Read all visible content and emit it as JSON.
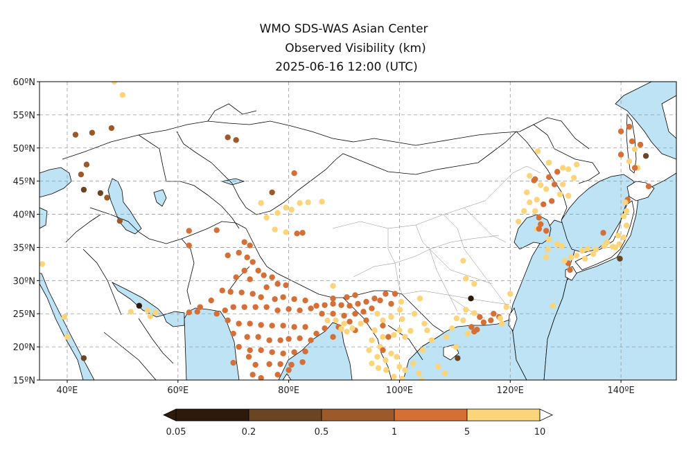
{
  "title": {
    "line1": "WMO SDS-WAS Asian Center",
    "line2": "Observed Visibility (km)",
    "line3": "2025-06-16 12:00 (UTC)"
  },
  "map": {
    "lon_range": [
      35,
      150
    ],
    "lat_range": [
      15,
      60
    ],
    "lon_ticks": [
      {
        "v": 40,
        "label": "40ºE"
      },
      {
        "v": 60,
        "label": "60ºE"
      },
      {
        "v": 80,
        "label": "80ºE"
      },
      {
        "v": 100,
        "label": "100ºE"
      },
      {
        "v": 120,
        "label": "120ºE"
      },
      {
        "v": 140,
        "label": "140ºE"
      }
    ],
    "lat_ticks": [
      {
        "v": 15,
        "label": "15ºN"
      },
      {
        "v": 20,
        "label": "20ºN"
      },
      {
        "v": 25,
        "label": "25ºN"
      },
      {
        "v": 30,
        "label": "30ºN"
      },
      {
        "v": 35,
        "label": "35ºN"
      },
      {
        "v": 40,
        "label": "40ºN"
      },
      {
        "v": 45,
        "label": "45ºN"
      },
      {
        "v": 50,
        "label": "50ºN"
      },
      {
        "v": 55,
        "label": "55ºN"
      },
      {
        "v": 60,
        "label": "60ºN"
      }
    ],
    "grid": true,
    "ocean_color": "#bde3f5",
    "land_color": "#ffffff"
  },
  "colorbar": {
    "boundaries": [
      "0.05",
      "0.2",
      "0.5",
      "1",
      "5",
      "10"
    ],
    "colors": [
      "#2d1a0c",
      "#6b4423",
      "#9c5a2a",
      "#d66f35",
      "#fcd57a"
    ]
  },
  "stations_cat": [
    {
      "lon": 41.5,
      "lat": 52,
      "c": 2
    },
    {
      "lon": 44.5,
      "lat": 52.3,
      "c": 2
    },
    {
      "lon": 48,
      "lat": 53,
      "c": 2
    },
    {
      "lon": 43.5,
      "lat": 47.5,
      "c": 2
    },
    {
      "lon": 42.5,
      "lat": 46,
      "c": 2
    },
    {
      "lon": 43,
      "lat": 43.7,
      "c": 1
    },
    {
      "lon": 46,
      "lat": 43.2,
      "c": 1
    },
    {
      "lon": 47.2,
      "lat": 42.5,
      "c": 2
    },
    {
      "lon": 49.5,
      "lat": 39,
      "c": 2
    },
    {
      "lon": 48.5,
      "lat": 60,
      "c": 4
    },
    {
      "lon": 50,
      "lat": 58,
      "c": 4
    },
    {
      "lon": 35.5,
      "lat": 32.5,
      "c": 4
    },
    {
      "lon": 39.5,
      "lat": 24.5,
      "c": 4
    },
    {
      "lon": 40,
      "lat": 21.5,
      "c": 4
    },
    {
      "lon": 43,
      "lat": 18.3,
      "c": 1
    },
    {
      "lon": 53,
      "lat": 26.2,
      "c": 0
    },
    {
      "lon": 54.5,
      "lat": 25.5,
      "c": 4
    },
    {
      "lon": 55,
      "lat": 24.6,
      "c": 4
    },
    {
      "lon": 56,
      "lat": 25.2,
      "c": 4
    },
    {
      "lon": 51.5,
      "lat": 25.3,
      "c": 4
    },
    {
      "lon": 69,
      "lat": 51.6,
      "c": 2
    },
    {
      "lon": 70.5,
      "lat": 51.2,
      "c": 2
    },
    {
      "lon": 77,
      "lat": 43.3,
      "c": 2
    },
    {
      "lon": 81,
      "lat": 46.2,
      "c": 3
    },
    {
      "lon": 75,
      "lat": 41.7,
      "c": 4
    },
    {
      "lon": 76,
      "lat": 39.5,
      "c": 4
    },
    {
      "lon": 78,
      "lat": 40.2,
      "c": 4
    },
    {
      "lon": 79.5,
      "lat": 41,
      "c": 4
    },
    {
      "lon": 80.5,
      "lat": 40.7,
      "c": 4
    },
    {
      "lon": 82,
      "lat": 41.7,
      "c": 4
    },
    {
      "lon": 83.5,
      "lat": 41.8,
      "c": 4
    },
    {
      "lon": 86,
      "lat": 41.9,
      "c": 4
    },
    {
      "lon": 77.5,
      "lat": 37.7,
      "c": 4
    },
    {
      "lon": 79.5,
      "lat": 37.3,
      "c": 4
    },
    {
      "lon": 81.5,
      "lat": 37.1,
      "c": 3
    },
    {
      "lon": 82.5,
      "lat": 37.2,
      "c": 3
    },
    {
      "lon": 62,
      "lat": 37.5,
      "c": 3
    },
    {
      "lon": 67,
      "lat": 37.6,
      "c": 3
    },
    {
      "lon": 62,
      "lat": 35.3,
      "c": 3
    },
    {
      "lon": 72,
      "lat": 35.8,
      "c": 3
    },
    {
      "lon": 73,
      "lat": 35.3,
      "c": 3
    },
    {
      "lon": 69,
      "lat": 33.8,
      "c": 3
    },
    {
      "lon": 71,
      "lat": 34.2,
      "c": 3
    },
    {
      "lon": 72.5,
      "lat": 33.5,
      "c": 3
    },
    {
      "lon": 73.5,
      "lat": 32.8,
      "c": 3
    },
    {
      "lon": 74.5,
      "lat": 31.5,
      "c": 3
    },
    {
      "lon": 72,
      "lat": 31.5,
      "c": 3
    },
    {
      "lon": 70.5,
      "lat": 30.5,
      "c": 3
    },
    {
      "lon": 73,
      "lat": 30.2,
      "c": 3
    },
    {
      "lon": 75.5,
      "lat": 30.8,
      "c": 3
    },
    {
      "lon": 77,
      "lat": 30.5,
      "c": 3
    },
    {
      "lon": 76,
      "lat": 29,
      "c": 3
    },
    {
      "lon": 78,
      "lat": 29.5,
      "c": 3
    },
    {
      "lon": 79.5,
      "lat": 29.3,
      "c": 3
    },
    {
      "lon": 68,
      "lat": 28.5,
      "c": 3
    },
    {
      "lon": 69.5,
      "lat": 28.3,
      "c": 3
    },
    {
      "lon": 71.5,
      "lat": 28.2,
      "c": 3
    },
    {
      "lon": 73.5,
      "lat": 28,
      "c": 3
    },
    {
      "lon": 75,
      "lat": 27.5,
      "c": 3
    },
    {
      "lon": 77.5,
      "lat": 27.2,
      "c": 3
    },
    {
      "lon": 79,
      "lat": 27.5,
      "c": 3
    },
    {
      "lon": 81,
      "lat": 27.2,
      "c": 3
    },
    {
      "lon": 83,
      "lat": 27,
      "c": 3
    },
    {
      "lon": 66,
      "lat": 27,
      "c": 3
    },
    {
      "lon": 64,
      "lat": 26,
      "c": 3
    },
    {
      "lon": 62,
      "lat": 25.2,
      "c": 3
    },
    {
      "lon": 63.5,
      "lat": 25.3,
      "c": 3
    },
    {
      "lon": 67,
      "lat": 25,
      "c": 3
    },
    {
      "lon": 68.5,
      "lat": 25.5,
      "c": 3
    },
    {
      "lon": 70,
      "lat": 26,
      "c": 3
    },
    {
      "lon": 72,
      "lat": 26,
      "c": 3
    },
    {
      "lon": 74,
      "lat": 26,
      "c": 3
    },
    {
      "lon": 76,
      "lat": 26,
      "c": 3
    },
    {
      "lon": 78,
      "lat": 25.5,
      "c": 3
    },
    {
      "lon": 80,
      "lat": 25.7,
      "c": 3
    },
    {
      "lon": 82,
      "lat": 25.5,
      "c": 3
    },
    {
      "lon": 84,
      "lat": 25.8,
      "c": 3
    },
    {
      "lon": 69,
      "lat": 24,
      "c": 3
    },
    {
      "lon": 71,
      "lat": 23.5,
      "c": 3
    },
    {
      "lon": 73,
      "lat": 23.5,
      "c": 3
    },
    {
      "lon": 75,
      "lat": 23.3,
      "c": 3
    },
    {
      "lon": 77,
      "lat": 23.2,
      "c": 3
    },
    {
      "lon": 79,
      "lat": 23.2,
      "c": 3
    },
    {
      "lon": 81,
      "lat": 23,
      "c": 3
    },
    {
      "lon": 83,
      "lat": 23,
      "c": 3
    },
    {
      "lon": 70,
      "lat": 22,
      "c": 3
    },
    {
      "lon": 72.5,
      "lat": 21.5,
      "c": 3
    },
    {
      "lon": 74.5,
      "lat": 21.5,
      "c": 3
    },
    {
      "lon": 76.5,
      "lat": 21,
      "c": 3
    },
    {
      "lon": 78.5,
      "lat": 21,
      "c": 3
    },
    {
      "lon": 80,
      "lat": 21.2,
      "c": 3
    },
    {
      "lon": 82,
      "lat": 21.3,
      "c": 3
    },
    {
      "lon": 84,
      "lat": 21,
      "c": 3
    },
    {
      "lon": 71,
      "lat": 20,
      "c": 3
    },
    {
      "lon": 73,
      "lat": 19.5,
      "c": 3
    },
    {
      "lon": 75,
      "lat": 19.5,
      "c": 3
    },
    {
      "lon": 77,
      "lat": 19.2,
      "c": 3
    },
    {
      "lon": 79,
      "lat": 19,
      "c": 3
    },
    {
      "lon": 81,
      "lat": 19.2,
      "c": 3
    },
    {
      "lon": 83,
      "lat": 19.3,
      "c": 3
    },
    {
      "lon": 72.8,
      "lat": 18.5,
      "c": 3
    },
    {
      "lon": 74,
      "lat": 17.3,
      "c": 3
    },
    {
      "lon": 76.5,
      "lat": 17.4,
      "c": 3
    },
    {
      "lon": 78.5,
      "lat": 17.4,
      "c": 3
    },
    {
      "lon": 80.5,
      "lat": 17.3,
      "c": 3
    },
    {
      "lon": 82.5,
      "lat": 17.7,
      "c": 3
    },
    {
      "lon": 70,
      "lat": 17.6,
      "c": 3
    },
    {
      "lon": 73.5,
      "lat": 15.8,
      "c": 3
    },
    {
      "lon": 75,
      "lat": 15.3,
      "c": 3
    },
    {
      "lon": 78,
      "lat": 15.8,
      "c": 3
    },
    {
      "lon": 80,
      "lat": 16.5,
      "c": 3
    },
    {
      "lon": 85,
      "lat": 26.2,
      "c": 3
    },
    {
      "lon": 86.5,
      "lat": 26.3,
      "c": 3
    },
    {
      "lon": 88,
      "lat": 26.5,
      "c": 3
    },
    {
      "lon": 89.5,
      "lat": 26.3,
      "c": 3
    },
    {
      "lon": 91,
      "lat": 26.2,
      "c": 3
    },
    {
      "lon": 92.5,
      "lat": 26.5,
      "c": 3
    },
    {
      "lon": 94,
      "lat": 26.8,
      "c": 3
    },
    {
      "lon": 95.5,
      "lat": 27.3,
      "c": 3
    },
    {
      "lon": 90.5,
      "lat": 27.5,
      "c": 3
    },
    {
      "lon": 92,
      "lat": 27.8,
      "c": 3
    },
    {
      "lon": 88,
      "lat": 27.3,
      "c": 3
    },
    {
      "lon": 86,
      "lat": 25,
      "c": 3
    },
    {
      "lon": 88,
      "lat": 25,
      "c": 3
    },
    {
      "lon": 90,
      "lat": 24.7,
      "c": 3
    },
    {
      "lon": 92,
      "lat": 25,
      "c": 3
    },
    {
      "lon": 93.5,
      "lat": 25.3,
      "c": 3
    },
    {
      "lon": 91,
      "lat": 23.8,
      "c": 3
    },
    {
      "lon": 89,
      "lat": 23,
      "c": 3
    },
    {
      "lon": 92,
      "lat": 22.5,
      "c": 3
    },
    {
      "lon": 86.5,
      "lat": 22.8,
      "c": 3
    },
    {
      "lon": 85,
      "lat": 22,
      "c": 3
    },
    {
      "lon": 88,
      "lat": 21.5,
      "c": 3
    },
    {
      "lon": 94,
      "lat": 24,
      "c": 3
    },
    {
      "lon": 95,
      "lat": 25.8,
      "c": 3
    },
    {
      "lon": 87,
      "lat": 24,
      "c": 4
    },
    {
      "lon": 88.5,
      "lat": 24,
      "c": 4
    },
    {
      "lon": 89.5,
      "lat": 22.7,
      "c": 4
    },
    {
      "lon": 90.5,
      "lat": 22.3,
      "c": 4
    },
    {
      "lon": 91.5,
      "lat": 22.8,
      "c": 4
    },
    {
      "lon": 93,
      "lat": 23.5,
      "c": 4
    },
    {
      "lon": 88,
      "lat": 29.2,
      "c": 4
    },
    {
      "lon": 90,
      "lat": 23.5,
      "c": 4
    },
    {
      "lon": 96,
      "lat": 25,
      "c": 4
    },
    {
      "lon": 97,
      "lat": 24,
      "c": 4
    },
    {
      "lon": 95.5,
      "lat": 22.5,
      "c": 4
    },
    {
      "lon": 97,
      "lat": 21.5,
      "c": 4
    },
    {
      "lon": 95,
      "lat": 21,
      "c": 4
    },
    {
      "lon": 96.5,
      "lat": 20,
      "c": 4
    },
    {
      "lon": 94.5,
      "lat": 19.5,
      "c": 4
    },
    {
      "lon": 96,
      "lat": 18.5,
      "c": 4
    },
    {
      "lon": 97.5,
      "lat": 18,
      "c": 4
    },
    {
      "lon": 95,
      "lat": 17.5,
      "c": 4
    },
    {
      "lon": 96.2,
      "lat": 16.8,
      "c": 4
    },
    {
      "lon": 97.6,
      "lat": 16.5,
      "c": 4
    },
    {
      "lon": 98.5,
      "lat": 19,
      "c": 4
    },
    {
      "lon": 99.5,
      "lat": 18.5,
      "c": 4
    },
    {
      "lon": 100,
      "lat": 17,
      "c": 4
    },
    {
      "lon": 101,
      "lat": 16.5,
      "c": 4
    },
    {
      "lon": 102.5,
      "lat": 17.5,
      "c": 4
    },
    {
      "lon": 103.5,
      "lat": 16,
      "c": 4
    },
    {
      "lon": 99,
      "lat": 15.5,
      "c": 4
    },
    {
      "lon": 100.5,
      "lat": 15.2,
      "c": 4
    },
    {
      "lon": 104,
      "lat": 15,
      "c": 4
    },
    {
      "lon": 97,
      "lat": 19.5,
      "c": 3
    },
    {
      "lon": 98,
      "lat": 21.5,
      "c": 3
    },
    {
      "lon": 99,
      "lat": 21.8,
      "c": 4
    },
    {
      "lon": 100,
      "lat": 22.5,
      "c": 4
    },
    {
      "lon": 101,
      "lat": 21.5,
      "c": 4
    },
    {
      "lon": 102,
      "lat": 22.4,
      "c": 4
    },
    {
      "lon": 100.3,
      "lat": 26.8,
      "c": 4
    },
    {
      "lon": 100.1,
      "lat": 25.6,
      "c": 4
    },
    {
      "lon": 98.5,
      "lat": 24.5,
      "c": 4
    },
    {
      "lon": 100.5,
      "lat": 24.2,
      "c": 4
    },
    {
      "lon": 102.7,
      "lat": 25,
      "c": 4
    },
    {
      "lon": 103.7,
      "lat": 27.3,
      "c": 4
    },
    {
      "lon": 105,
      "lat": 22.5,
      "c": 4
    },
    {
      "lon": 105.8,
      "lat": 21,
      "c": 4
    },
    {
      "lon": 104.2,
      "lat": 19.5,
      "c": 4
    },
    {
      "lon": 107,
      "lat": 17,
      "c": 4
    },
    {
      "lon": 108.2,
      "lat": 16,
      "c": 4
    },
    {
      "lon": 99.2,
      "lat": 28,
      "c": 3
    },
    {
      "lon": 97.5,
      "lat": 28,
      "c": 3
    },
    {
      "lon": 98.5,
      "lat": 26.5,
      "c": 3
    },
    {
      "lon": 96.5,
      "lat": 27,
      "c": 3
    },
    {
      "lon": 104.5,
      "lat": 23.5,
      "c": 4
    },
    {
      "lon": 97,
      "lat": 23.2,
      "c": 3
    },
    {
      "lon": 112.9,
      "lat": 27.3,
      "c": 0
    },
    {
      "lon": 110.5,
      "lat": 18.3,
      "c": 1
    },
    {
      "lon": 110.2,
      "lat": 20,
      "c": 4
    },
    {
      "lon": 108.5,
      "lat": 21.5,
      "c": 4
    },
    {
      "lon": 109.5,
      "lat": 22.8,
      "c": 4
    },
    {
      "lon": 110.3,
      "lat": 24.3,
      "c": 4
    },
    {
      "lon": 111.5,
      "lat": 24,
      "c": 4
    },
    {
      "lon": 112,
      "lat": 25.6,
      "c": 4
    },
    {
      "lon": 113,
      "lat": 23,
      "c": 3
    },
    {
      "lon": 114,
      "lat": 22.6,
      "c": 3
    },
    {
      "lon": 114.5,
      "lat": 24.5,
      "c": 3
    },
    {
      "lon": 115.2,
      "lat": 23.7,
      "c": 3
    },
    {
      "lon": 116.5,
      "lat": 24,
      "c": 3
    },
    {
      "lon": 117,
      "lat": 25,
      "c": 3
    },
    {
      "lon": 118,
      "lat": 24.5,
      "c": 3
    },
    {
      "lon": 119.3,
      "lat": 26,
      "c": 4
    },
    {
      "lon": 113.5,
      "lat": 25.1,
      "c": 4
    },
    {
      "lon": 112.3,
      "lat": 22,
      "c": 4
    },
    {
      "lon": 113.5,
      "lat": 29.5,
      "c": 4
    },
    {
      "lon": 112,
      "lat": 30.3,
      "c": 4
    },
    {
      "lon": 113.5,
      "lat": 22.3,
      "c": 3
    },
    {
      "lon": 111.5,
      "lat": 33,
      "c": 4
    },
    {
      "lon": 118.2,
      "lat": 24.3,
      "c": 4
    },
    {
      "lon": 120,
      "lat": 28,
      "c": 4
    },
    {
      "lon": 118.5,
      "lat": 23.5,
      "c": 4
    },
    {
      "lon": 125,
      "lat": 49.5,
      "c": 4
    },
    {
      "lon": 127,
      "lat": 47.8,
      "c": 4
    },
    {
      "lon": 129.5,
      "lat": 47,
      "c": 4
    },
    {
      "lon": 130.5,
      "lat": 46.8,
      "c": 4
    },
    {
      "lon": 132,
      "lat": 47.5,
      "c": 4
    },
    {
      "lon": 131.5,
      "lat": 45.5,
      "c": 4
    },
    {
      "lon": 128.5,
      "lat": 46.4,
      "c": 3
    },
    {
      "lon": 127,
      "lat": 45.6,
      "c": 3
    },
    {
      "lon": 124.5,
      "lat": 45.3,
      "c": 3
    },
    {
      "lon": 123.5,
      "lat": 45.8,
      "c": 4
    },
    {
      "lon": 125.5,
      "lat": 44.4,
      "c": 4
    },
    {
      "lon": 126.5,
      "lat": 43.8,
      "c": 4
    },
    {
      "lon": 128,
      "lat": 44.5,
      "c": 3
    },
    {
      "lon": 129.5,
      "lat": 44.5,
      "c": 4
    },
    {
      "lon": 130.5,
      "lat": 42.8,
      "c": 4
    },
    {
      "lon": 129,
      "lat": 43,
      "c": 4
    },
    {
      "lon": 127.5,
      "lat": 42,
      "c": 3
    },
    {
      "lon": 126,
      "lat": 41.5,
      "c": 3
    },
    {
      "lon": 124.5,
      "lat": 40.5,
      "c": 4
    },
    {
      "lon": 125.2,
      "lat": 39.5,
      "c": 3
    },
    {
      "lon": 124.8,
      "lat": 42.2,
      "c": 4
    },
    {
      "lon": 123.5,
      "lat": 41.8,
      "c": 4
    },
    {
      "lon": 122.5,
      "lat": 40.5,
      "c": 4
    },
    {
      "lon": 121.5,
      "lat": 38.9,
      "c": 4
    },
    {
      "lon": 123,
      "lat": 43.3,
      "c": 4
    },
    {
      "lon": 125.5,
      "lat": 38.5,
      "c": 3
    },
    {
      "lon": 126.5,
      "lat": 37.5,
      "c": 3
    },
    {
      "lon": 127,
      "lat": 36.2,
      "c": 4
    },
    {
      "lon": 128.5,
      "lat": 35.5,
      "c": 4
    },
    {
      "lon": 129.3,
      "lat": 35.2,
      "c": 4
    },
    {
      "lon": 126.8,
      "lat": 34.7,
      "c": 4
    },
    {
      "lon": 126.5,
      "lat": 33.5,
      "c": 4
    },
    {
      "lon": 124.8,
      "lat": 37.8,
      "c": 4
    },
    {
      "lon": 125.2,
      "lat": 37.8,
      "c": 3
    },
    {
      "lon": 124.3,
      "lat": 45.1,
      "c": 3
    },
    {
      "lon": 140,
      "lat": 52.5,
      "c": 3
    },
    {
      "lon": 142,
      "lat": 51,
      "c": 3
    },
    {
      "lon": 142.5,
      "lat": 49.8,
      "c": 4
    },
    {
      "lon": 141.5,
      "lat": 48,
      "c": 4
    },
    {
      "lon": 143,
      "lat": 47,
      "c": 4
    },
    {
      "lon": 140,
      "lat": 49,
      "c": 3
    },
    {
      "lon": 144.5,
      "lat": 48.8,
      "c": 1
    },
    {
      "lon": 143.5,
      "lat": 50.5,
      "c": 3
    },
    {
      "lon": 141.5,
      "lat": 53.2,
      "c": 3
    },
    {
      "lon": 142.5,
      "lat": 47,
      "c": 3
    },
    {
      "lon": 145,
      "lat": 44.2,
      "c": 3
    },
    {
      "lon": 141.2,
      "lat": 42.2,
      "c": 3
    },
    {
      "lon": 140.8,
      "lat": 41.8,
      "c": 4
    },
    {
      "lon": 141,
      "lat": 40.5,
      "c": 4
    },
    {
      "lon": 140.5,
      "lat": 39.7,
      "c": 4
    },
    {
      "lon": 141,
      "lat": 38.3,
      "c": 4
    },
    {
      "lon": 139.5,
      "lat": 36.8,
      "c": 4
    },
    {
      "lon": 140.5,
      "lat": 36.5,
      "c": 4
    },
    {
      "lon": 139.7,
      "lat": 35.5,
      "c": 4
    },
    {
      "lon": 138.5,
      "lat": 35.1,
      "c": 4
    },
    {
      "lon": 137,
      "lat": 35.2,
      "c": 4
    },
    {
      "lon": 135.5,
      "lat": 34.7,
      "c": 4
    },
    {
      "lon": 133,
      "lat": 34.5,
      "c": 4
    },
    {
      "lon": 132,
      "lat": 33.8,
      "c": 4
    },
    {
      "lon": 131,
      "lat": 33.5,
      "c": 4
    },
    {
      "lon": 130.5,
      "lat": 32.6,
      "c": 3
    },
    {
      "lon": 130.8,
      "lat": 31.6,
      "c": 3
    },
    {
      "lon": 133.5,
      "lat": 33.3,
      "c": 4
    },
    {
      "lon": 135,
      "lat": 34,
      "c": 4
    },
    {
      "lon": 136.8,
      "lat": 37.2,
      "c": 3
    },
    {
      "lon": 139.8,
      "lat": 33.3,
      "c": 1
    },
    {
      "lon": 129.8,
      "lat": 33,
      "c": 4
    },
    {
      "lon": 139,
      "lat": 35,
      "c": 4
    },
    {
      "lon": 127.7,
      "lat": 26.2,
      "c": 4
    },
    {
      "lon": 137.5,
      "lat": 35.8,
      "c": 4
    },
    {
      "lon": 134,
      "lat": 34.8,
      "c": 4
    }
  ]
}
